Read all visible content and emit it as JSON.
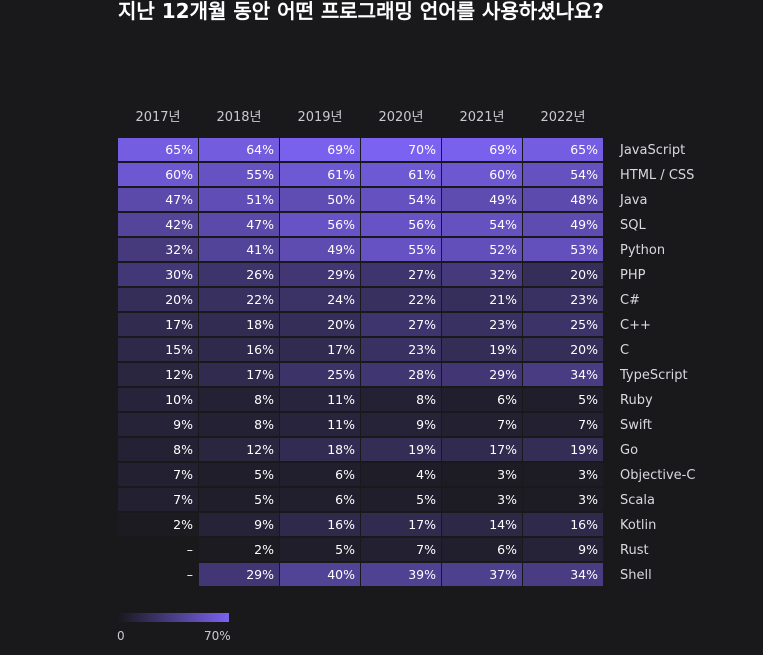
{
  "title": "지난 12개월 동안 어떤 프로그래밍 언어를 사용하셨나요?",
  "legend": {
    "min_label": "0",
    "max_label": "70%",
    "min": 0,
    "max": 70
  },
  "colors": {
    "background": "#19191c",
    "low": "#19191c",
    "high": "#7b62f0",
    "text": "#ffffff",
    "label": "#d8d8de"
  },
  "chart_data": {
    "type": "heatmap",
    "title": "지난 12개월 동안 어떤 프로그래밍 언어를 사용하셨나요?",
    "columns": [
      "2017년",
      "2018년",
      "2019년",
      "2020년",
      "2021년",
      "2022년"
    ],
    "rows": [
      "JavaScript",
      "HTML / CSS",
      "Java",
      "SQL",
      "Python",
      "PHP",
      "C#",
      "C++",
      "C",
      "TypeScript",
      "Ruby",
      "Swift",
      "Go",
      "Objective-C",
      "Scala",
      "Kotlin",
      "Rust",
      "Shell"
    ],
    "values": [
      [
        65,
        64,
        69,
        70,
        69,
        65
      ],
      [
        60,
        55,
        61,
        61,
        60,
        54
      ],
      [
        47,
        51,
        50,
        54,
        49,
        48
      ],
      [
        42,
        47,
        56,
        56,
        54,
        49
      ],
      [
        32,
        41,
        49,
        55,
        52,
        53
      ],
      [
        30,
        26,
        29,
        27,
        32,
        20
      ],
      [
        20,
        22,
        24,
        22,
        21,
        23
      ],
      [
        17,
        18,
        20,
        27,
        23,
        25
      ],
      [
        15,
        16,
        17,
        23,
        19,
        20
      ],
      [
        12,
        17,
        25,
        28,
        29,
        34
      ],
      [
        10,
        8,
        11,
        8,
        6,
        5
      ],
      [
        9,
        8,
        11,
        9,
        7,
        7
      ],
      [
        8,
        12,
        18,
        19,
        17,
        19
      ],
      [
        7,
        5,
        6,
        4,
        3,
        3
      ],
      [
        7,
        5,
        6,
        5,
        3,
        3
      ],
      [
        2,
        9,
        16,
        17,
        14,
        16
      ],
      [
        null,
        2,
        5,
        7,
        6,
        9
      ],
      [
        null,
        29,
        40,
        39,
        37,
        34
      ]
    ],
    "labels": [
      [
        "65%",
        "64%",
        "69%",
        "70%",
        "69%",
        "65%"
      ],
      [
        "60%",
        "55%",
        "61%",
        "61%",
        "60%",
        "54%"
      ],
      [
        "47%",
        "51%",
        "50%",
        "54%",
        "49%",
        "48%"
      ],
      [
        "42%",
        "47%",
        "56%",
        "56%",
        "54%",
        "49%"
      ],
      [
        "32%",
        "41%",
        "49%",
        "55%",
        "52%",
        "53%"
      ],
      [
        "30%",
        "26%",
        "29%",
        "27%",
        "32%",
        "20%"
      ],
      [
        "20%",
        "22%",
        "24%",
        "22%",
        "21%",
        "23%"
      ],
      [
        "17%",
        "18%",
        "20%",
        "27%",
        "23%",
        "25%"
      ],
      [
        "15%",
        "16%",
        "17%",
        "23%",
        "19%",
        "20%"
      ],
      [
        "12%",
        "17%",
        "25%",
        "28%",
        "29%",
        "34%"
      ],
      [
        "10%",
        "8%",
        "11%",
        "8%",
        "6%",
        "5%"
      ],
      [
        "9%",
        "8%",
        "11%",
        "9%",
        "7%",
        "7%"
      ],
      [
        "8%",
        "12%",
        "18%",
        "19%",
        "17%",
        "19%"
      ],
      [
        "7%",
        "5%",
        "6%",
        "4%",
        "3%",
        "3%"
      ],
      [
        "7%",
        "5%",
        "6%",
        "5%",
        "3%",
        "3%"
      ],
      [
        "2%",
        "9%",
        "16%",
        "17%",
        "14%",
        "16%"
      ],
      [
        "–",
        "2%",
        "5%",
        "7%",
        "6%",
        "9%"
      ],
      [
        "–",
        "29%",
        "40%",
        "39%",
        "37%",
        "34%"
      ]
    ],
    "scale_range": [
      0,
      70
    ],
    "legend_position": "bottom-left"
  }
}
